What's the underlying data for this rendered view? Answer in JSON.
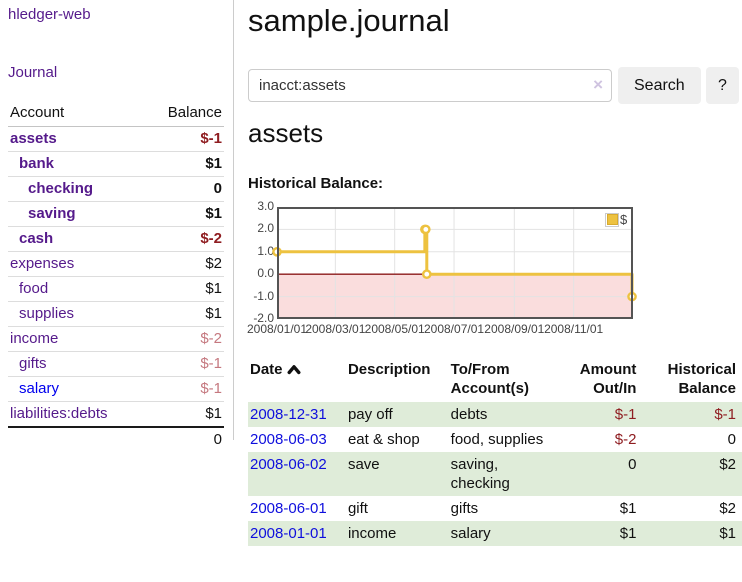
{
  "app": {
    "title": "hledger-web"
  },
  "sidebar": {
    "journal_link": "Journal",
    "accounts_table": {
      "account_header": "Account",
      "balance_header": "Balance",
      "rows": [
        {
          "name": "assets",
          "depth": 1,
          "bold": true,
          "balance": "$-1",
          "balance_tone": "negative"
        },
        {
          "name": "bank",
          "depth": 2,
          "bold": true,
          "balance": "$1",
          "balance_tone": "normal"
        },
        {
          "name": "checking",
          "depth": 3,
          "bold": true,
          "balance": "0",
          "balance_tone": "normal"
        },
        {
          "name": "saving",
          "depth": 3,
          "bold": true,
          "balance": "$1",
          "balance_tone": "normal"
        },
        {
          "name": "cash",
          "depth": 2,
          "bold": true,
          "balance": "$-2",
          "balance_tone": "negative"
        },
        {
          "name": "expenses",
          "depth": 1,
          "bold": false,
          "balance": "$2",
          "balance_tone": "normal"
        },
        {
          "name": "food",
          "depth": 2,
          "bold": false,
          "balance": "$1",
          "balance_tone": "normal"
        },
        {
          "name": "supplies",
          "depth": 2,
          "bold": false,
          "balance": "$1",
          "balance_tone": "normal"
        },
        {
          "name": "income",
          "depth": 1,
          "bold": false,
          "balance": "$-2",
          "balance_tone": "negative-faded"
        },
        {
          "name": "gifts",
          "depth": 2,
          "bold": false,
          "balance": "$-1",
          "balance_tone": "negative-faded"
        },
        {
          "name": "salary",
          "depth": 2,
          "bold": false,
          "balance": "$-1",
          "balance_tone": "negative-faded",
          "link_tone": "unvisited"
        },
        {
          "name": "liabilities:debts",
          "depth": 1,
          "bold": false,
          "balance": "$1",
          "balance_tone": "normal"
        }
      ],
      "total": "0"
    }
  },
  "main": {
    "title": "sample.journal",
    "search": {
      "value": "inacct:assets",
      "clear_label": "×",
      "submit_label": "Search",
      "help_label": "?"
    },
    "account_heading": "assets",
    "chart_title": "Historical Balance:"
  },
  "chart_data": {
    "type": "line",
    "step": true,
    "title": "Historical Balance",
    "x_range": [
      "2008-01-01",
      "2009-01-01"
    ],
    "ylim": [
      -2,
      3
    ],
    "yticks": [
      {
        "label": "3.0",
        "value": 3
      },
      {
        "label": "2.0",
        "value": 2
      },
      {
        "label": "1.0",
        "value": 1
      },
      {
        "label": "0.0",
        "value": 0
      },
      {
        "label": "-1.0",
        "value": -1
      },
      {
        "label": "-2.0",
        "value": -2
      }
    ],
    "xticks": [
      {
        "label": "2008/01/01",
        "date": "2008-01-01"
      },
      {
        "label": "2008/03/01",
        "date": "2008-03-01"
      },
      {
        "label": "2008/05/01",
        "date": "2008-05-01"
      },
      {
        "label": "2008/07/01",
        "date": "2008-07-01"
      },
      {
        "label": "2008/09/01",
        "date": "2008-09-01"
      },
      {
        "label": "2008/11/01",
        "date": "2008-11-01"
      }
    ],
    "series": [
      {
        "name": "$",
        "color": "#edc240",
        "points": [
          {
            "x": "2008-01-01",
            "y": 1
          },
          {
            "x": "2008-06-01",
            "y": 2
          },
          {
            "x": "2008-06-02",
            "y": 2
          },
          {
            "x": "2008-06-03",
            "y": 0
          },
          {
            "x": "2008-12-31",
            "y": -1
          }
        ]
      }
    ],
    "colors": {
      "negative_region_fill": "#fadddd",
      "zero_line": "#8b1a1a",
      "grid": "#e3e3e3",
      "border": "#545454"
    },
    "legend": {
      "label": "$",
      "position": "top-right"
    }
  },
  "register": {
    "headers": {
      "date": "Date",
      "description": "Description",
      "accounts": "To/From\nAccount(s)",
      "amount": "Amount\nOut/In",
      "balance": "Historical\nBalance"
    },
    "rows": [
      {
        "date": "2008-12-31",
        "description": "pay off",
        "accounts": "debts",
        "amount": "$-1",
        "amount_tone": "negative",
        "balance": "$-1",
        "balance_tone": "negative"
      },
      {
        "date": "2008-06-03",
        "description": "eat & shop",
        "accounts": "food, supplies",
        "amount": "$-2",
        "amount_tone": "negative",
        "balance": "0",
        "balance_tone": "normal"
      },
      {
        "date": "2008-06-02",
        "description": "save",
        "accounts": "saving,\nchecking",
        "amount": "0",
        "amount_tone": "normal",
        "balance": "$2",
        "balance_tone": "normal"
      },
      {
        "date": "2008-06-01",
        "description": "gift",
        "accounts": "gifts",
        "amount": "$1",
        "amount_tone": "normal",
        "balance": "$2",
        "balance_tone": "normal"
      },
      {
        "date": "2008-01-01",
        "description": "income",
        "accounts": "salary",
        "amount": "$1",
        "amount_tone": "normal",
        "balance": "$1",
        "balance_tone": "normal"
      }
    ]
  }
}
